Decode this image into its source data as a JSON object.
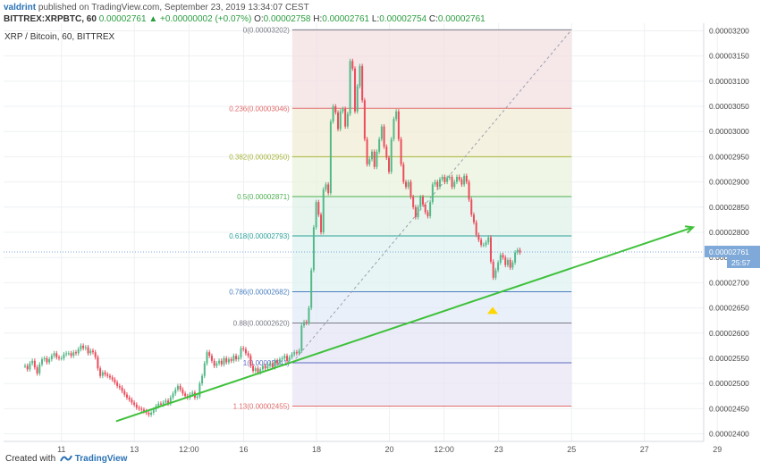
{
  "header": {
    "user": "valdrint",
    "published": "published on TradingView.com, September 23, 2019 13:34:07 CEST",
    "ticker": "BITTREX:XRPBTC, 60",
    "last": "0.00002761",
    "change": "▲ +0.00000002 (+0.07%)",
    "o_label": "O:",
    "o_value": "0.00002758",
    "h_label": "H:",
    "h_value": "0.00002761",
    "l_label": "L:",
    "l_value": "0.00002754",
    "c_label": "C:",
    "c_value": "0.00002761"
  },
  "footer": {
    "created_with": "Created with",
    "brand": "TradingView"
  },
  "colors": {
    "up": "#53b987",
    "down": "#eb4d5c",
    "trendline": "#3ec13a",
    "price_tag": "#7fa9d8",
    "triangle": "#ffd600"
  },
  "chart_data": {
    "type": "candlestick",
    "title": "XRP / Bitcoin, 60, BITTREX",
    "ylim": [
      2.385e-05,
      3.215e-05
    ],
    "y_ticks": [
      "0.00003200",
      "0.00003150",
      "0.00003100",
      "0.00003050",
      "0.00003000",
      "0.00002950",
      "0.00002900",
      "0.00002850",
      "0.00002800",
      "0.00002750",
      "0.00002700",
      "0.00002650",
      "0.00002600",
      "0.00002550",
      "0.00002500",
      "0.00002450",
      "0.00002400"
    ],
    "x_tick_labels": [
      "11",
      "13",
      "12:00",
      "16",
      "18",
      "20",
      "12:00",
      "23",
      "25",
      "27",
      "29"
    ],
    "current_price": "0.00002761",
    "countdown": "25:57",
    "fib_levels": [
      {
        "ratio": "0",
        "price": "0.00003202",
        "color": "#787b86"
      },
      {
        "ratio": "0.236",
        "price": "0.00003046",
        "color": "#e06a6a"
      },
      {
        "ratio": "0.382",
        "price": "0.00002950",
        "color": "#a8b43a"
      },
      {
        "ratio": "0.5",
        "price": "0.00002871",
        "color": "#4caf50"
      },
      {
        "ratio": "0.618",
        "price": "0.00002793",
        "color": "#2aa198"
      },
      {
        "ratio": "0.786",
        "price": "0.00002682",
        "color": "#4a7fc1"
      },
      {
        "ratio": "0.88",
        "price": "0.00002620",
        "color": "#787b86"
      },
      {
        "ratio": "1",
        "price": "0.00002541",
        "color": "#5c6bc0"
      },
      {
        "ratio": "1.13",
        "price": "0.00002455",
        "color": "#e06a6a"
      }
    ],
    "fib_zone_colors": [
      "#f3dfe1",
      "#f1ecd5",
      "#e9f3dc",
      "#e0f1e8",
      "#dff1f1",
      "#e3ebf7",
      "#e4e6f6",
      "#eae6f6"
    ],
    "trendline": {
      "start": {
        "x": "2019-09-12 12:00",
        "y": 2.425e-05
      },
      "end": {
        "x": "2019-09-28 08:00",
        "y": 2.81e-05
      }
    },
    "triangle_marker": {
      "x": "2019-09-22 20:00",
      "y": 2.645e-05
    },
    "candles_hourly_close": [
      2.535e-05,
      2.528e-05,
      2.54e-05,
      2.545e-05,
      2.532e-05,
      2.52e-05,
      2.538e-05,
      2.548e-05,
      2.55e-05,
      2.542e-05,
      2.548e-05,
      2.555e-05,
      2.56e-05,
      2.552e-05,
      2.55e-05,
      2.55e-05,
      2.558e-05,
      2.56e-05,
      2.56e-05,
      2.555e-05,
      2.562e-05,
      2.56e-05,
      2.568e-05,
      2.575e-05,
      2.57e-05,
      2.572e-05,
      2.56e-05,
      2.565e-05,
      2.562e-05,
      2.552e-05,
      2.53e-05,
      2.515e-05,
      2.522e-05,
      2.518e-05,
      2.515e-05,
      2.512e-05,
      2.508e-05,
      2.502e-05,
      2.495e-05,
      2.492e-05,
      2.485e-05,
      2.478e-05,
      2.472e-05,
      2.468e-05,
      2.462e-05,
      2.458e-05,
      2.452e-05,
      2.45e-05,
      2.448e-05,
      2.445e-05,
      2.442e-05,
      2.438e-05,
      2.442e-05,
      2.448e-05,
      2.455e-05,
      2.46e-05,
      2.458e-05,
      2.462e-05,
      2.466e-05,
      2.46e-05,
      2.472e-05,
      2.48e-05,
      2.488e-05,
      2.495e-05,
      2.488e-05,
      2.48e-05,
      2.475e-05,
      2.472e-05,
      2.478e-05,
      2.482e-05,
      2.472e-05,
      2.474e-05,
      2.5e-05,
      2.515e-05,
      2.54e-05,
      2.562e-05,
      2.555e-05,
      2.545e-05,
      2.535e-05,
      2.54e-05,
      2.545e-05,
      2.538e-05,
      2.55e-05,
      2.542e-05,
      2.548e-05,
      2.545e-05,
      2.555e-05,
      2.548e-05,
      2.552e-05,
      2.57e-05,
      2.568e-05,
      2.56e-05,
      2.555e-05,
      2.535e-05,
      2.525e-05,
      2.53e-05,
      2.522e-05,
      2.528e-05,
      2.535e-05,
      2.53e-05,
      2.535e-05,
      2.54e-05,
      2.532e-05,
      2.545e-05,
      2.54e-05,
      2.548e-05,
      2.55e-05,
      2.555e-05,
      2.545e-05,
      2.552e-05,
      2.558e-05,
      2.562e-05,
      2.56e-05,
      2.565e-05,
      2.615e-05,
      2.622e-05,
      2.62e-05,
      2.65e-05,
      2.725e-05,
      2.81e-05,
      2.86e-05,
      2.835e-05,
      2.8e-05,
      2.885e-05,
      2.895e-05,
      2.878e-05,
      3.02e-05,
      3.05e-05,
      3.038e-05,
      3.005e-05,
      3.04e-05,
      3.045e-05,
      3.01e-05,
      3.035e-05,
      3.14e-05,
      3.125e-05,
      3.04e-05,
      3.09e-05,
      3.13e-05,
      3.062e-05,
      2.985e-05,
      2.935e-05,
      2.945e-05,
      2.96e-05,
      2.93e-05,
      2.96e-05,
      2.985e-05,
      3.01e-05,
      2.97e-05,
      2.948e-05,
      2.92e-05,
      2.985e-05,
      3.025e-05,
      3.04e-05,
      2.985e-05,
      2.935e-05,
      2.9e-05,
      2.89e-05,
      2.9e-05,
      2.87e-05,
      2.85e-05,
      2.83e-05,
      2.85e-05,
      2.87e-05,
      2.855e-05,
      2.84e-05,
      2.832e-05,
      2.86e-05,
      2.895e-05,
      2.9e-05,
      2.89e-05,
      2.905e-05,
      2.91e-05,
      2.9e-05,
      2.908e-05,
      2.91e-05,
      2.89e-05,
      2.9e-05,
      2.91e-05,
      2.905e-05,
      2.895e-05,
      2.912e-05,
      2.9e-05,
      2.865e-05,
      2.835e-05,
      2.82e-05,
      2.795e-05,
      2.785e-05,
      2.775e-05,
      2.775e-05,
      2.78e-05,
      2.79e-05,
      2.742e-05,
      2.71e-05,
      2.725e-05,
      2.74e-05,
      2.755e-05,
      2.75e-05,
      2.735e-05,
      2.745e-05,
      2.73e-05,
      2.74e-05,
      2.76e-05,
      2.765e-05,
      2.76e-05
    ]
  }
}
